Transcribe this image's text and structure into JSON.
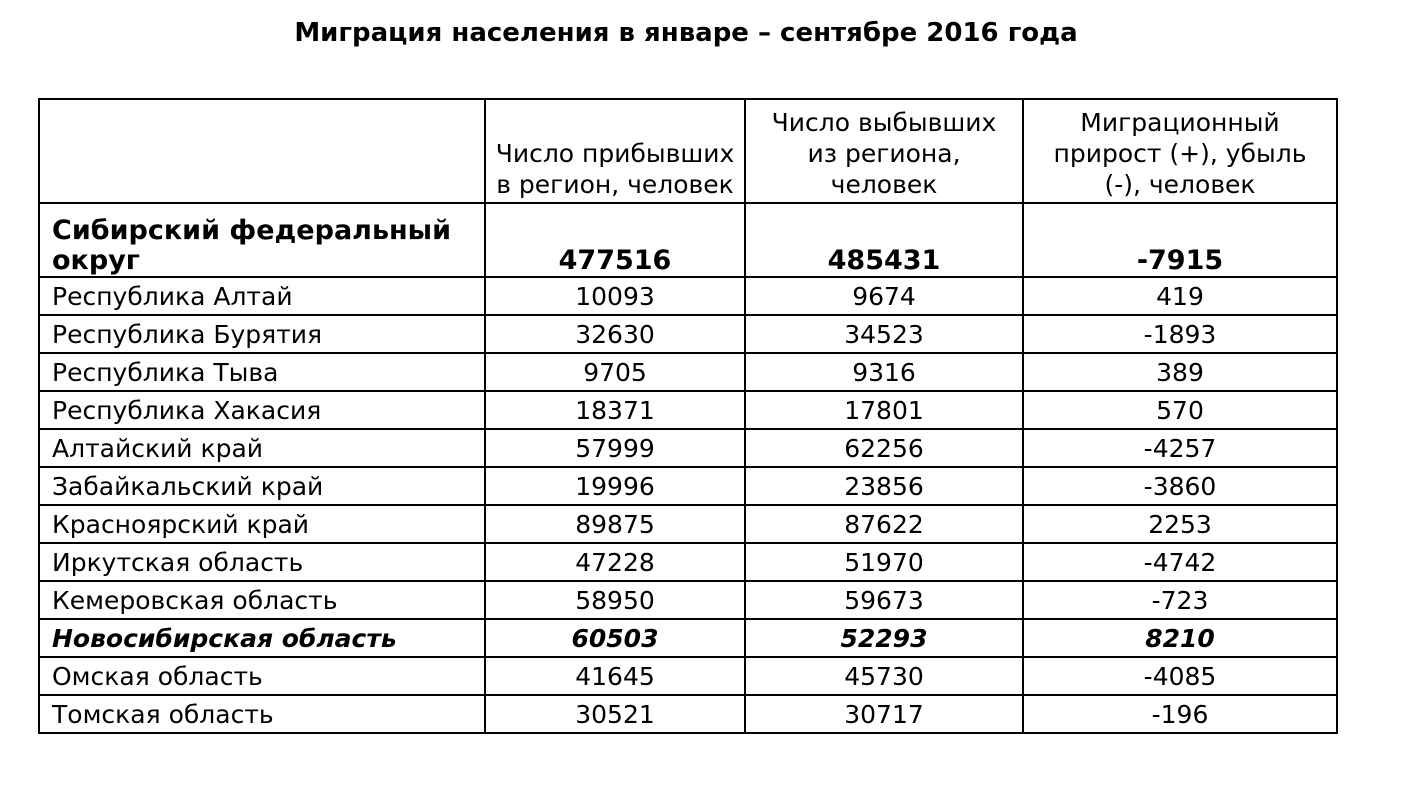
{
  "title": "Миграция населения в январе – сентябре 2016 года",
  "table": {
    "headers": [
      "",
      "Число прибывших в регион, человек",
      "Число выбывших из региона, человек",
      "Миграционный прирост (+), убыль (-), человек"
    ],
    "rows": [
      {
        "name": "Сибирский федеральный округ",
        "arrived": "477516",
        "departed": "485431",
        "net": "-7915",
        "style": "total"
      },
      {
        "name": "Республика Алтай",
        "arrived": "10093",
        "departed": "9674",
        "net": "419",
        "style": "normal"
      },
      {
        "name": "Республика Бурятия",
        "arrived": "32630",
        "departed": "34523",
        "net": "-1893",
        "style": "normal"
      },
      {
        "name": "Республика Тыва",
        "arrived": "9705",
        "departed": "9316",
        "net": "389",
        "style": "normal"
      },
      {
        "name": "Республика Хакасия",
        "arrived": "18371",
        "departed": "17801",
        "net": "570",
        "style": "normal"
      },
      {
        "name": "Алтайский край",
        "arrived": "57999",
        "departed": "62256",
        "net": "-4257",
        "style": "normal"
      },
      {
        "name": "Забайкальский край",
        "arrived": "19996",
        "departed": "23856",
        "net": "-3860",
        "style": "normal"
      },
      {
        "name": "Красноярский край",
        "arrived": "89875",
        "departed": "87622",
        "net": "2253",
        "style": "normal"
      },
      {
        "name": "Иркутская область",
        "arrived": "47228",
        "departed": "51970",
        "net": "-4742",
        "style": "normal"
      },
      {
        "name": "Кемеровская область",
        "arrived": "58950",
        "departed": "59673",
        "net": "-723",
        "style": "normal"
      },
      {
        "name": "Новосибирская область",
        "arrived": "60503",
        "departed": "52293",
        "net": "8210",
        "style": "highlight"
      },
      {
        "name": "Омская область",
        "arrived": "41645",
        "departed": "45730",
        "net": "-4085",
        "style": "normal"
      },
      {
        "name": "Томская область",
        "arrived": "30521",
        "departed": "30717",
        "net": "-196",
        "style": "normal"
      }
    ]
  }
}
